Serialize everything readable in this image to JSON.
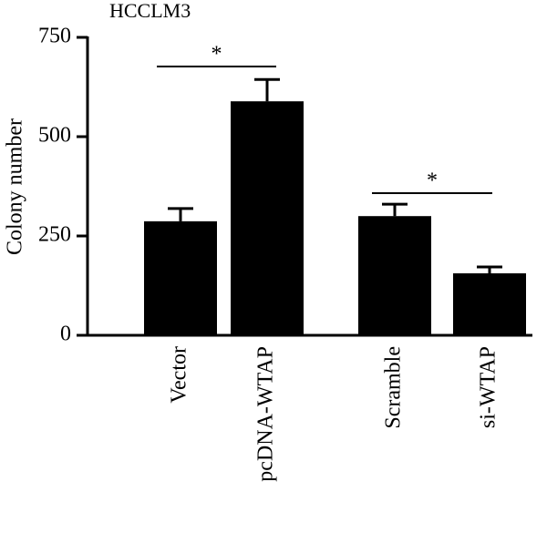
{
  "chart_data": {
    "type": "bar",
    "title": "HCCLM3",
    "y_label": "Colony number",
    "categories": [
      "Vector",
      "pcDNA-WTAP",
      "Scramble",
      "si-WTAP"
    ],
    "values": [
      287,
      589,
      300,
      156
    ],
    "errors": [
      32,
      55,
      30,
      16
    ],
    "color": "#000000",
    "ylim": [
      0,
      750
    ],
    "yticks": [
      0,
      250,
      500,
      750
    ],
    "grid": false,
    "significance": [
      "*",
      "*"
    ]
  }
}
